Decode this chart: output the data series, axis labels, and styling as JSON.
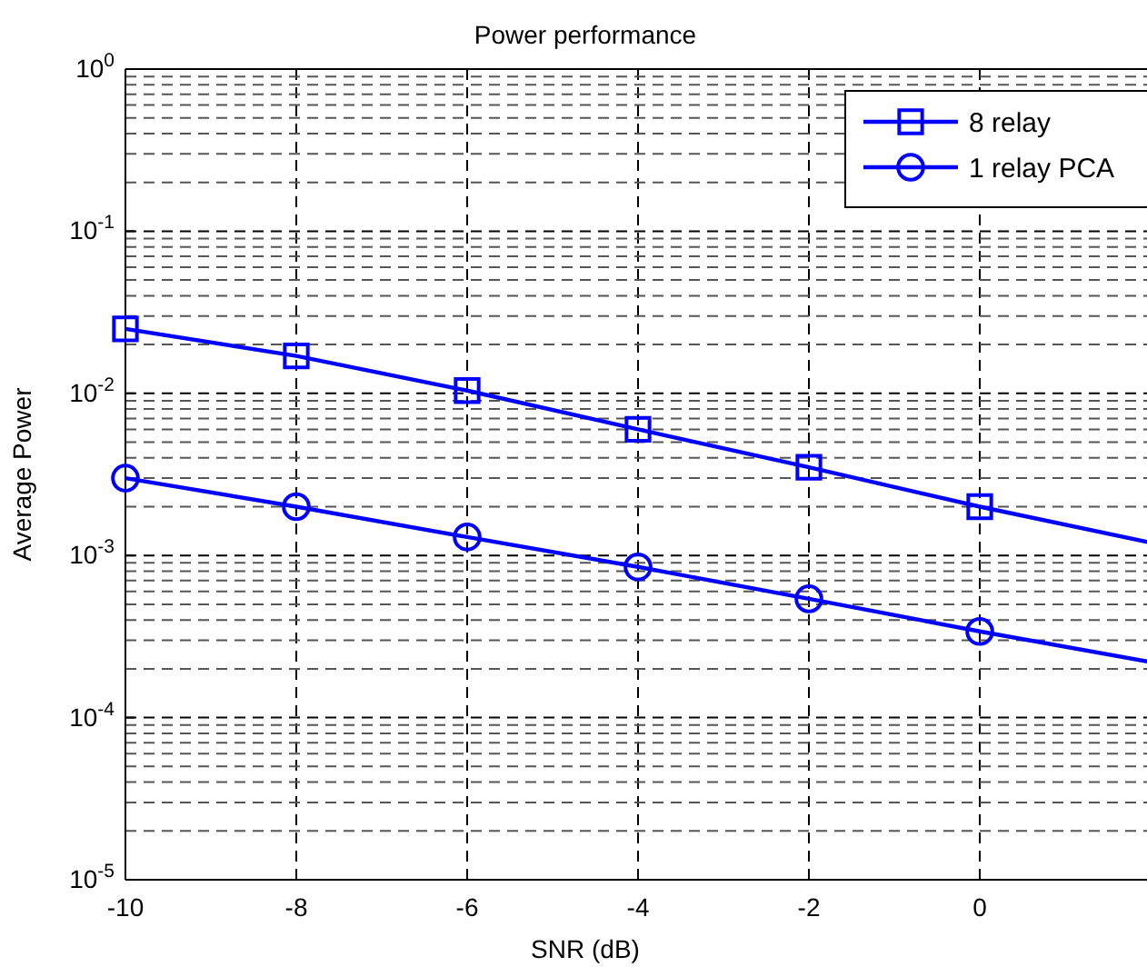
{
  "chart_data": {
    "type": "line",
    "title": "Power performance",
    "xlabel": "SNR (dB)",
    "ylabel": "Average Power",
    "x": [
      -10,
      -8,
      -6,
      -4,
      -2,
      0,
      2
    ],
    "series": [
      {
        "name": "8 relay",
        "color": "#0000ff",
        "marker": "square",
        "values": [
          0.025,
          0.017,
          0.0104,
          0.006,
          0.0035,
          0.002,
          0.0012
        ]
      },
      {
        "name": "1 relay PCA",
        "color": "#0000ff",
        "marker": "circle",
        "values": [
          0.003,
          0.002,
          0.0013,
          0.00085,
          0.00054,
          0.00034,
          0.00022
        ]
      }
    ],
    "log": true,
    "xlim": [
      -10,
      2
    ],
    "ylim": [
      1e-05,
      1
    ],
    "xticks": [
      -10,
      -8,
      -6,
      -4,
      -2,
      0,
      {
        "value": 2,
        "label": null
      }
    ],
    "yticks": [
      {
        "value": 1e-05,
        "label": "10$^{-5}$"
      },
      {
        "value": 0.0001,
        "label": "10$^{-4}$"
      },
      {
        "value": 0.001,
        "label": "10$^{-3}$"
      },
      {
        "value": 0.01,
        "label": "10$^{-2}$"
      },
      {
        "value": 0.1,
        "label": "10$^{-1}$"
      },
      {
        "value": 1,
        "label": "10$^{0}$"
      }
    ],
    "grid": true,
    "legend": "top right",
    "line_style": "solid"
  }
}
